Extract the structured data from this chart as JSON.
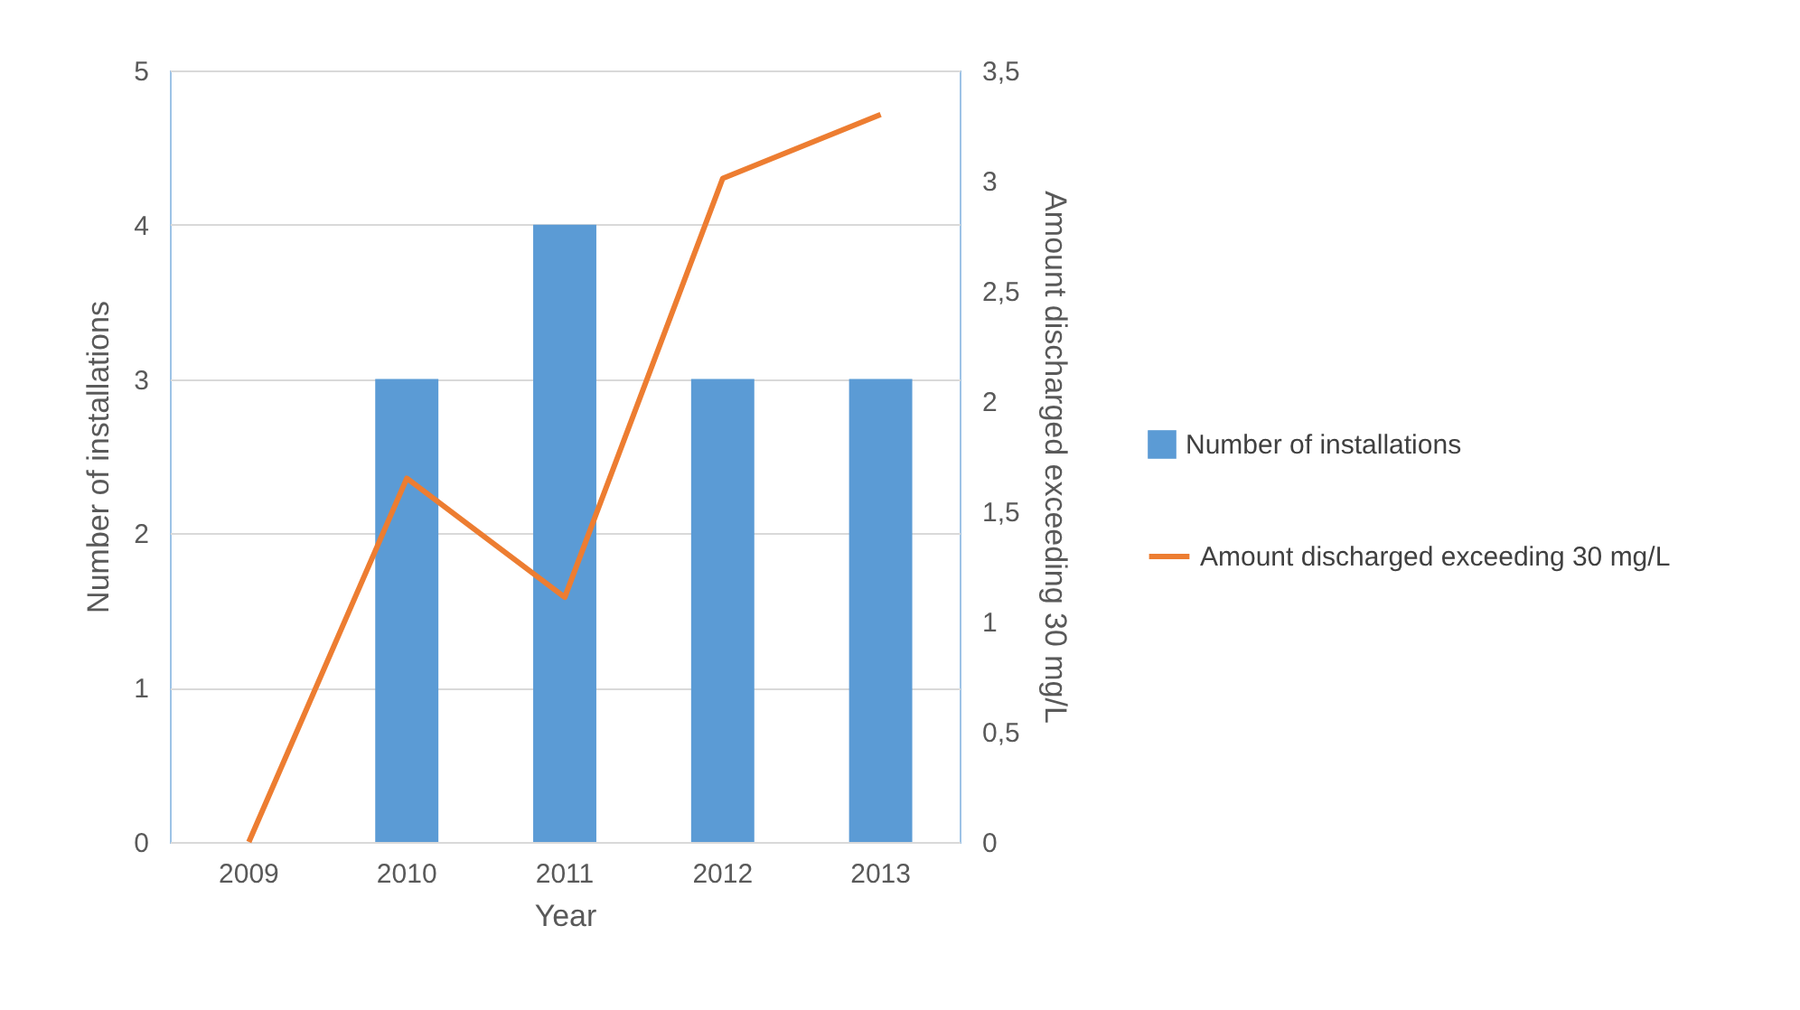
{
  "chart_data": {
    "type": "bar",
    "categories": [
      "2009",
      "2010",
      "2011",
      "2012",
      "2013"
    ],
    "series": [
      {
        "name": "Number of installations",
        "color": "#5b9bd5",
        "values": [
          0,
          3,
          4,
          3,
          3
        ]
      },
      {
        "name": "Amount discharged exceeding 30 mg/L",
        "type": "line",
        "axis": "y2",
        "color": "#ed7d31",
        "values": [
          0,
          1.65,
          1.11,
          3.01,
          3.3
        ]
      }
    ],
    "xlabel": "Year",
    "ylabel": "Number of installations",
    "y2label": "Amount discharged exceeding 30 mg/L",
    "ylim": [
      0,
      5
    ],
    "yticks": [
      0,
      1,
      2,
      3,
      4,
      5
    ],
    "y2lim": [
      0,
      3.5
    ],
    "y2ticks": [
      0,
      {
        "value": 0.5,
        "label": "0,5"
      },
      1,
      {
        "value": 1.5,
        "label": "1,5"
      },
      2,
      {
        "value": 2.5,
        "label": "2,5"
      },
      3,
      {
        "value": 3.5,
        "label": "3,5"
      }
    ],
    "grid": "y",
    "legend": "right"
  }
}
